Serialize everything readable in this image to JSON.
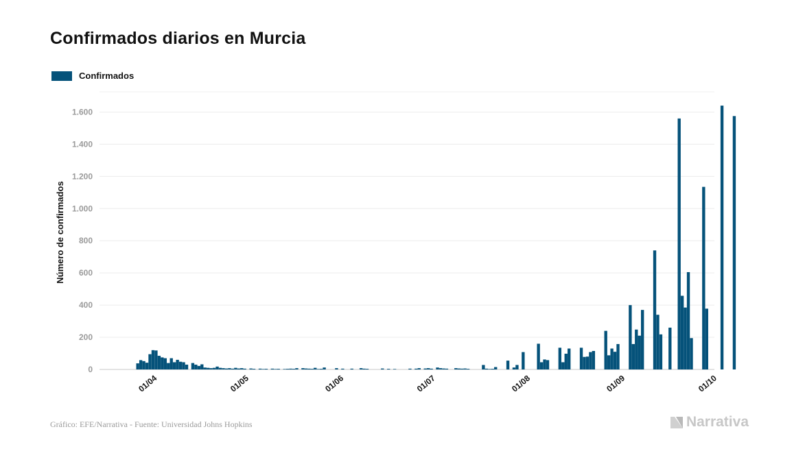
{
  "title": "Confirmados diarios en Murcia",
  "legend": {
    "label": "Confirmados",
    "color": "#05527a"
  },
  "footer": {
    "source": "Gráfico: EFE/Narrativa - Fuente: Universidad Johns Hopkins"
  },
  "brand": {
    "name": "Narrativa"
  },
  "chart_data": {
    "type": "bar",
    "title": "Confirmados diarios en Murcia",
    "ylabel": "Número de confirmados",
    "xlabel": "",
    "ylim": [
      0,
      1700
    ],
    "yticks": [
      0,
      200,
      400,
      600,
      800,
      1000,
      1200,
      1400,
      1600
    ],
    "ytick_labels": [
      "0",
      "200",
      "400",
      "600",
      "800",
      "1.000",
      "1.200",
      "1.400",
      "1.600"
    ],
    "xticks": [
      "2020-04-01",
      "2020-05-01",
      "2020-06-01",
      "2020-07-01",
      "2020-08-01",
      "2020-09-01",
      "2020-10-01"
    ],
    "xtick_labels": [
      "01/04",
      "01/05",
      "01/06",
      "01/07",
      "01/08",
      "01/09",
      "01/10"
    ],
    "xlim": [
      "2020-03-14",
      "2020-10-01"
    ],
    "grid": true,
    "legend_position": "top-left",
    "series": [
      {
        "name": "Confirmados",
        "color": "#05527a",
        "start_date": "2020-03-14",
        "values": [
          0,
          0,
          0,
          0,
          0,
          0,
          0,
          0,
          0,
          0,
          0,
          0,
          38,
          58,
          52,
          42,
          95,
          120,
          118,
          85,
          75,
          70,
          40,
          70,
          45,
          60,
          48,
          45,
          30,
          0,
          40,
          30,
          22,
          32,
          12,
          10,
          8,
          10,
          18,
          10,
          8,
          6,
          8,
          5,
          10,
          6,
          8,
          5,
          0,
          6,
          4,
          0,
          5,
          3,
          4,
          0,
          5,
          3,
          4,
          0,
          3,
          4,
          5,
          4,
          8,
          0,
          8,
          6,
          5,
          4,
          10,
          3,
          4,
          12,
          0,
          0,
          0,
          8,
          0,
          5,
          0,
          0,
          5,
          0,
          0,
          8,
          5,
          4,
          0,
          0,
          0,
          0,
          6,
          0,
          4,
          0,
          3,
          0,
          0,
          0,
          0,
          5,
          0,
          5,
          8,
          0,
          6,
          8,
          5,
          0,
          12,
          8,
          6,
          5,
          0,
          0,
          8,
          6,
          5,
          6,
          4,
          0,
          0,
          0,
          0,
          28,
          5,
          3,
          4,
          15,
          0,
          0,
          0,
          55,
          0,
          12,
          28,
          0,
          108,
          0,
          0,
          0,
          0,
          160,
          45,
          62,
          58,
          0,
          0,
          0,
          135,
          45,
          98,
          130,
          0,
          0,
          0,
          135,
          78,
          80,
          108,
          115,
          0,
          0,
          0,
          240,
          88,
          130,
          110,
          158,
          0,
          0,
          0,
          400,
          158,
          248,
          210,
          370,
          0,
          0,
          0,
          740,
          340,
          218,
          0,
          0,
          260,
          0,
          0,
          1560,
          458,
          385,
          605,
          195,
          0,
          0,
          0,
          1135,
          378,
          0,
          0,
          0,
          0,
          1640,
          0,
          0,
          0,
          1575,
          0,
          0,
          0,
          0,
          0,
          0,
          0,
          0,
          0,
          0,
          0,
          0,
          0,
          0
        ]
      }
    ]
  }
}
